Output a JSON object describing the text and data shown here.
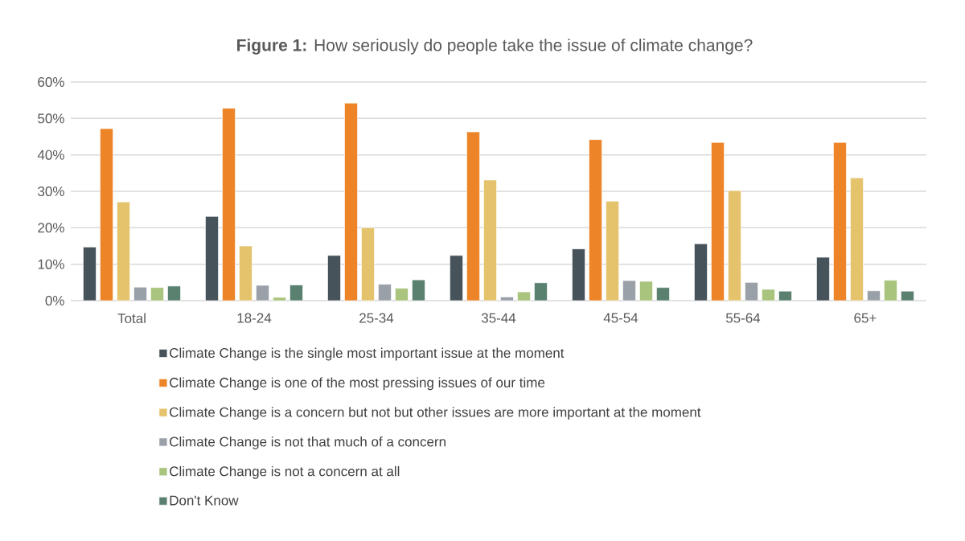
{
  "chart_data": {
    "type": "bar",
    "title": "**Figure 1:** How seriously do people take the issue of climate change?",
    "categories": [
      "Total",
      "18-24",
      "25-34",
      "35-44",
      "45-54",
      "55-64",
      "65+"
    ],
    "series": [
      {
        "name": "Climate Change is the single most important issue at the moment",
        "color": "#46535a",
        "values": [
          14.7,
          23.1,
          12.4,
          12.4,
          14.2,
          15.6,
          11.9
        ]
      },
      {
        "name": "Climate Change is one of the most pressing issues of our time",
        "color": "#ed8428",
        "values": [
          47.2,
          52.8,
          54.2,
          46.3,
          44.2,
          43.4,
          43.4
        ]
      },
      {
        "name": "Climate Change is a concern but not but other issues are more important at the moment",
        "color": "#e5c36d",
        "values": [
          27.1,
          15.0,
          20.0,
          33.1,
          27.3,
          30.2,
          33.7
        ]
      },
      {
        "name": "Climate Change is not that much of a concern",
        "color": "#9aa0a8",
        "values": [
          3.7,
          4.2,
          4.5,
          1.0,
          5.5,
          5.0,
          2.7
        ]
      },
      {
        "name": "Climate Change is not a concern at all",
        "color": "#a9c47c",
        "values": [
          3.6,
          0.9,
          3.4,
          2.4,
          5.3,
          3.1,
          5.6
        ]
      },
      {
        "name": "Don't Know",
        "color": "#5a8070",
        "values": [
          4.0,
          4.3,
          5.7,
          4.9,
          3.6,
          2.6,
          2.6
        ]
      }
    ],
    "ylim": [
      0,
      60
    ],
    "yticks": [
      {
        "value": 0,
        "label": "0%"
      },
      {
        "value": 10,
        "label": "10%"
      },
      {
        "value": 20,
        "label": "20%"
      },
      {
        "value": 30,
        "label": "30%"
      },
      {
        "value": 40,
        "label": "40%"
      },
      {
        "value": 50,
        "label": "50%"
      },
      {
        "value": 60,
        "label": "60%"
      }
    ],
    "grid": "y",
    "legend": "bottom"
  }
}
